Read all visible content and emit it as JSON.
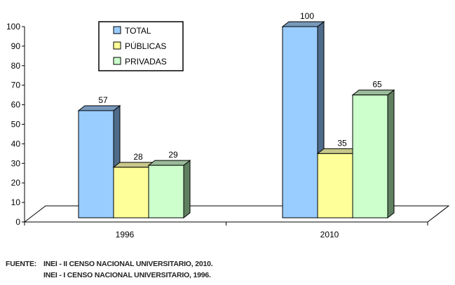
{
  "chart_data": {
    "type": "bar",
    "categories": [
      "1996",
      "2010"
    ],
    "series": [
      {
        "name": "TOTAL",
        "values": [
          57,
          100
        ],
        "color": "#99ccff",
        "side_color": "#4f6b8a",
        "top_color": "#7799bb"
      },
      {
        "name": "PÚBLICAS",
        "values": [
          28,
          35
        ],
        "color": "#ffff99",
        "side_color": "#8a8a52",
        "top_color": "#c8c88a"
      },
      {
        "name": "PRIVADAS",
        "values": [
          29,
          65
        ],
        "color": "#ccffcc",
        "side_color": "#5f7f5f",
        "top_color": "#99bb99"
      }
    ],
    "ylim": [
      0,
      100
    ],
    "yticks": [
      "0",
      "10",
      "20",
      "30",
      "40",
      "50",
      "60",
      "70",
      "80",
      "90",
      "100"
    ],
    "legend_position": "top-left",
    "grid": false
  },
  "source": {
    "label": "FUENTE:",
    "lines": [
      "INEI - II CENSO NACIONAL UNIVERSITARIO, 2010.",
      "INEI - I CENSO NACIONAL UNIVERSITARIO, 1996."
    ]
  }
}
